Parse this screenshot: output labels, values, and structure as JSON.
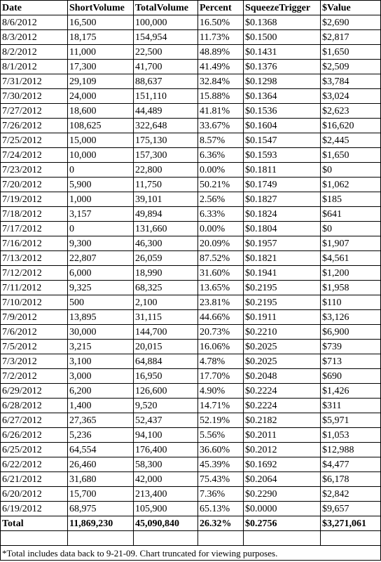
{
  "headers": [
    "Date",
    "ShortVolume",
    "TotalVolume",
    "Percent",
    "SqueezeTrigger",
    "$Value"
  ],
  "rows": [
    [
      "8/6/2012",
      "16,500",
      "100,000",
      "16.50%",
      "$0.1368",
      "$2,690"
    ],
    [
      "8/3/2012",
      "18,175",
      "154,954",
      "11.73%",
      "$0.1500",
      "$2,817"
    ],
    [
      "8/2/2012",
      "11,000",
      "22,500",
      "48.89%",
      "$0.1431",
      "$1,650"
    ],
    [
      "8/1/2012",
      "17,300",
      "41,700",
      "41.49%",
      "$0.1376",
      "$2,509"
    ],
    [
      "7/31/2012",
      "29,109",
      "88,637",
      "32.84%",
      "$0.1298",
      "$3,784"
    ],
    [
      "7/30/2012",
      "24,000",
      "151,110",
      "15.88%",
      "$0.1364",
      "$3,024"
    ],
    [
      "7/27/2012",
      "18,600",
      "44,489",
      "41.81%",
      "$0.1536",
      "$2,623"
    ],
    [
      "7/26/2012",
      "108,625",
      "322,648",
      "33.67%",
      "$0.1604",
      "$16,620"
    ],
    [
      "7/25/2012",
      "15,000",
      "175,130",
      "8.57%",
      "$0.1547",
      "$2,445"
    ],
    [
      "7/24/2012",
      "10,000",
      "157,300",
      "6.36%",
      "$0.1593",
      "$1,650"
    ],
    [
      "7/23/2012",
      "0",
      "22,800",
      "0.00%",
      "$0.1811",
      "$0"
    ],
    [
      "7/20/2012",
      "5,900",
      "11,750",
      "50.21%",
      "$0.1749",
      "$1,062"
    ],
    [
      "7/19/2012",
      "1,000",
      "39,101",
      "2.56%",
      "$0.1827",
      "$185"
    ],
    [
      "7/18/2012",
      "3,157",
      "49,894",
      "6.33%",
      "$0.1824",
      "$641"
    ],
    [
      "7/17/2012",
      "0",
      "131,660",
      "0.00%",
      "$0.1804",
      "$0"
    ],
    [
      "7/16/2012",
      "9,300",
      "46,300",
      "20.09%",
      "$0.1957",
      "$1,907"
    ],
    [
      "7/13/2012",
      "22,807",
      "26,059",
      "87.52%",
      "$0.1821",
      "$4,561"
    ],
    [
      "7/12/2012",
      "6,000",
      "18,990",
      "31.60%",
      "$0.1941",
      "$1,200"
    ],
    [
      "7/11/2012",
      "9,325",
      "68,325",
      "13.65%",
      "$0.2195",
      "$1,958"
    ],
    [
      "7/10/2012",
      "500",
      "2,100",
      "23.81%",
      "$0.2195",
      "$110"
    ],
    [
      "7/9/2012",
      "13,895",
      "31,115",
      "44.66%",
      "$0.1911",
      "$3,126"
    ],
    [
      "7/6/2012",
      "30,000",
      "144,700",
      "20.73%",
      "$0.2210",
      "$6,900"
    ],
    [
      "7/5/2012",
      "3,215",
      "20,015",
      "16.06%",
      "$0.2025",
      "$739"
    ],
    [
      "7/3/2012",
      "3,100",
      "64,884",
      "4.78%",
      "$0.2025",
      "$713"
    ],
    [
      "7/2/2012",
      "3,000",
      "16,950",
      "17.70%",
      "$0.2048",
      "$690"
    ],
    [
      "6/29/2012",
      "6,200",
      "126,600",
      "4.90%",
      "$0.2224",
      "$1,426"
    ],
    [
      "6/28/2012",
      "1,400",
      "9,520",
      "14.71%",
      "$0.2224",
      "$311"
    ],
    [
      "6/27/2012",
      "27,365",
      "52,437",
      "52.19%",
      "$0.2182",
      "$5,971"
    ],
    [
      "6/26/2012",
      "5,236",
      "94,100",
      "5.56%",
      "$0.2011",
      "$1,053"
    ],
    [
      "6/25/2012",
      "64,554",
      "176,400",
      "36.60%",
      "$0.2012",
      "$12,988"
    ],
    [
      "6/22/2012",
      "26,460",
      "58,300",
      "45.39%",
      "$0.1692",
      "$4,477"
    ],
    [
      "6/21/2012",
      "31,680",
      "42,000",
      "75.43%",
      "$0.2064",
      "$6,178"
    ],
    [
      "6/20/2012",
      "15,700",
      "213,400",
      "7.36%",
      "$0.2290",
      "$2,842"
    ],
    [
      "6/19/2012",
      "68,975",
      "105,900",
      "65.13%",
      "$0.0000",
      "$9,657"
    ]
  ],
  "total": [
    "Total",
    "11,869,230",
    "45,090,840",
    "26.32%",
    "$0.2756",
    "$3,271,061"
  ],
  "footnote": "*Total includes data back to 9-21-09. Chart truncated for viewing purposes."
}
